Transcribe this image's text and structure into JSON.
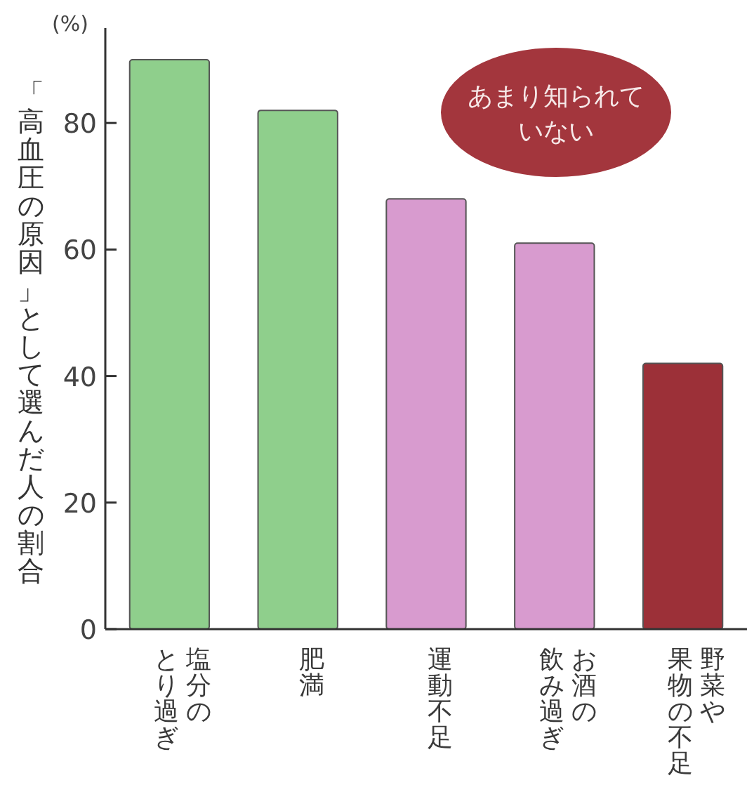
{
  "chart_data": {
    "type": "bar",
    "ylabel": "「高血圧の原因」として選んだ人の割合",
    "categories": [
      "塩分のとり過ぎ",
      "肥満",
      "運動不足",
      "お酒の飲み過ぎ",
      "野菜や果物の不足"
    ],
    "values": [
      90,
      82,
      68,
      61,
      42
    ],
    "colors": [
      "#8fcf8c",
      "#8fcf8c",
      "#d89bcf",
      "#d89bcf",
      "#9c3038"
    ],
    "ylim": [
      0,
      95
    ],
    "yticks": [
      0,
      20,
      40,
      60,
      80
    ],
    "annotations": [
      "(%)",
      "あまり知られていない"
    ],
    "grid": false
  }
}
